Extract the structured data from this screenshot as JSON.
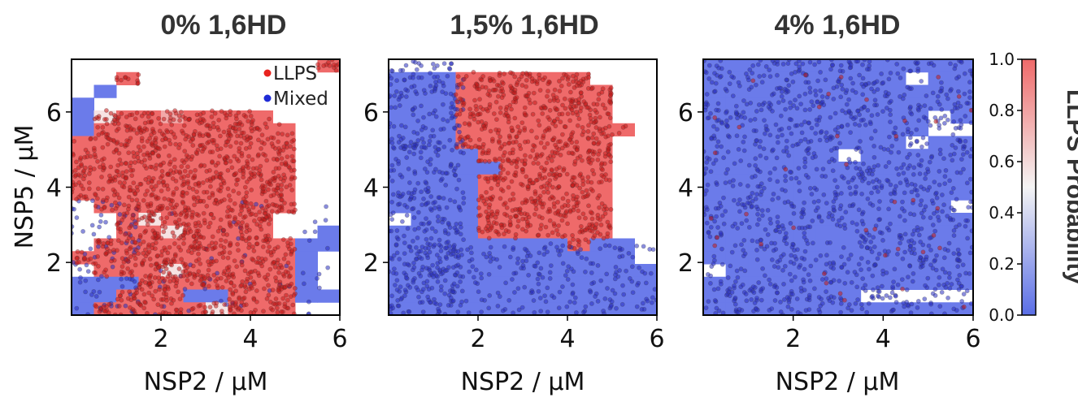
{
  "chart_data": [
    {
      "type": "heatmap",
      "title": "0% 1,6HD",
      "xlabel": "NSP2 / μM",
      "ylabel": "NSP5 / μM",
      "xlim": [
        0,
        6
      ],
      "ylim": [
        0.6,
        7.4
      ],
      "xticks": [
        "2",
        "4",
        "6"
      ],
      "yticks": [
        "2",
        "4",
        "6"
      ],
      "legend": {
        "placement": "top-right",
        "entries": [
          {
            "label": "LLPS",
            "color": "#e8231e"
          },
          {
            "label": "Mixed",
            "color": "#1f2bd6"
          }
        ]
      },
      "bin_size": 0.5,
      "grid_rows_top_to_bottom": [
        "...........X",
        "..X.........",
        ".B..........",
        "B...........",
        "BwRRpRRRR...",
        "BRRRRRRRRR..",
        "RRRRRRRRRR..",
        "RRRRRRRRRR..",
        "RRRRRRRRRR..",
        "RRRRRRRRRR..",
        "RRRRRRRRRR..",
        ".RRRRRRRRR..",
        "..RwRRRRR...",
        "..RRwRRRR..B",
        ".RRRRRRRRRBB",
        "RRRRRRRRRRB.",
        ".RRRwRRRRRB.",
        "BBBRRRRRRRB.",
        "BBRRRBBRRRBB",
        "BRRRRRwRRR.."
      ],
      "scatter_density": {
        "LLPS": 1500,
        "Mixed": 130
      }
    },
    {
      "type": "heatmap",
      "title": "1,5% 1,6HD",
      "xlabel": "NSP2 / μM",
      "xlim": [
        0,
        6
      ],
      "ylim": [
        0.6,
        7.4
      ],
      "xticks": [
        "2",
        "4",
        "6"
      ],
      "yticks": [
        "2",
        "4",
        "6"
      ],
      "bin_size": 0.5,
      "grid_rows_top_to_bottom": [
        "............",
        "BBBRRRRRR...",
        "BBBRRRRRRR..",
        "BBBRRRRRRR..",
        "BBBRRRRRRR..",
        "BBBRRRRRRRR.",
        "BBBRRRRRRR..",
        "BBBBRRRRRR..",
        "BBBBBRRRRR..",
        "BBBBRRRRRR..",
        "BBBBRRRRRR..",
        "BBBBRRRRRR..",
        ".BBBRRRRRR..",
        "BBBBRRRRRR..",
        "BBBBBBBBRBB.",
        "BBBBBBBBBBB.",
        "BBBBBBBBBBBB",
        "BBBBBBBBBBBB",
        "BBBBBBBBBBBB",
        "BBBBBBBBBBBB"
      ],
      "scatter_density": {
        "LLPS": 820,
        "Mixed": 700
      }
    },
    {
      "type": "heatmap",
      "title": "4% 1,6HD",
      "xlabel": "NSP2 / μM",
      "xlim": [
        0,
        6
      ],
      "ylim": [
        0.6,
        7.4
      ],
      "xticks": [
        "2",
        "4",
        "6"
      ],
      "yticks": [
        "2",
        "4",
        "6"
      ],
      "bin_size": 0.5,
      "grid_rows_top_to_bottom": [
        "BBBBBBBBBBBB",
        "BBBBBBBBB.BB",
        "BBBBBBBBBBBB",
        "BBBBBBBBBBBB",
        "BBBBBBBBBB.B",
        "BBBBBBBBBB..",
        "BBBBBBBBB.BB",
        "BBBBBB.BBBBB",
        "BBBBBBBBBBBB",
        "BBBBBBBBBBBB",
        "BBBBBBBBBBBB",
        "BBBBBBBBBBB.",
        "BBBBBBBBBBBB",
        "BBBBBBBBBBBB",
        "BBBBBBBBBBBB",
        "BBBBBBBBBBBB",
        ".BBBBBBBBBBB",
        "BBBBBBBBBBBB",
        "BBBBBBB.....",
        "BBBBBBBBBBBB"
      ],
      "scatter_density": {
        "LLPS": 40,
        "Mixed": 1300
      }
    }
  ],
  "colorbar": {
    "label": "LLPS Probability",
    "ticks": [
      "0.0",
      "0.2",
      "0.4",
      "0.6",
      "0.8",
      "1.0"
    ],
    "range": [
      0,
      1
    ],
    "colors": {
      "low": "#5a6ee6",
      "mid": "#f4f4f4",
      "high": "#ef6a6a"
    }
  }
}
